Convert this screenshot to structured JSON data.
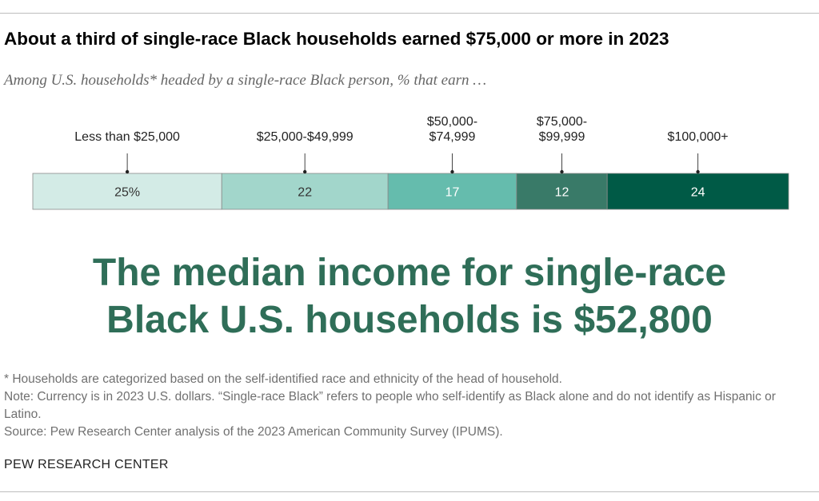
{
  "title": "About a third of single-race Black households earned $75,000 or more in 2023",
  "subtitle": "Among U.S. households* headed by a single-race Black person, % that earn …",
  "chart_data": {
    "type": "bar",
    "orientation": "horizontal-stacked",
    "categories": [
      "Less than $25,000",
      "$25,000-$49,999",
      "$50,000-$74,999",
      "$75,000-$99,999",
      "$100,000+"
    ],
    "category_label_lines": [
      [
        "Less than $25,000"
      ],
      [
        "$25,000-$49,999"
      ],
      [
        "$50,000-",
        "$74,999"
      ],
      [
        "$75,000-",
        "$99,999"
      ],
      [
        "$100,000+"
      ]
    ],
    "values": [
      25,
      22,
      17,
      12,
      24
    ],
    "value_labels": [
      "25%",
      "22",
      "17",
      "12",
      "24"
    ],
    "colors": [
      "#d3ebe6",
      "#a2d6cb",
      "#65bcad",
      "#397a68",
      "#005a46"
    ],
    "label_colors": [
      "#333333",
      "#333333",
      "#ffffff",
      "#ffffff",
      "#ffffff"
    ],
    "unit": "%"
  },
  "headline": {
    "line1": "The median income for single-race",
    "line2": "Black U.S. households is $52,800"
  },
  "notes": {
    "footnote": "* Households are categorized based on the self-identified race and ethnicity of the head of household.",
    "note": "Note: Currency is in 2023 U.S. dollars. “Single-race Black” refers to people who self-identify as Black alone and do not identify as Hispanic or Latino.",
    "source": "Source: Pew Research Center analysis of the 2023 American Community Survey (IPUMS)."
  },
  "brand": "PEW RESEARCH CENTER"
}
